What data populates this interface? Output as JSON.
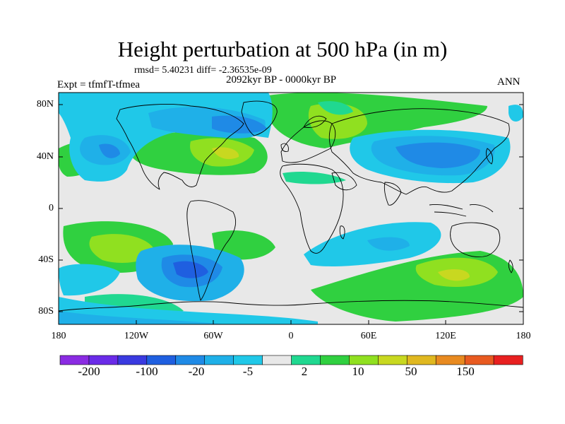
{
  "title": "Height perturbation at 500 hPa (in m)",
  "stats": "rmsd= 5.40231 diff= -2.36535e-09",
  "period": "2092kyr BP - 0000kyr BP",
  "experiment": "Expt = tfmfT-tfmea",
  "season": "ANN",
  "y_ticks": [
    "80N",
    "40N",
    "0",
    "40S",
    "80S"
  ],
  "x_ticks": [
    "180",
    "120W",
    "60W",
    "0",
    "60E",
    "120E",
    "180"
  ],
  "colorbar": {
    "colors": [
      "#8a2be2",
      "#6a2be8",
      "#3a3ae0",
      "#1f5fe0",
      "#1f8ae6",
      "#1fb0e8",
      "#20c8e8",
      "#e8e8e8",
      "#20d890",
      "#30d040",
      "#90e020",
      "#c8d820",
      "#e0b820",
      "#e88a20",
      "#e85a20",
      "#e82020"
    ],
    "labels": [
      "-200",
      "-100",
      "-20",
      "-5",
      "2",
      "10",
      "50",
      "150"
    ]
  },
  "map": {
    "projection": "cylindrical-equidistant",
    "lon_range": [
      -180,
      180
    ],
    "lat_range": [
      -90,
      90
    ],
    "background_color": "#e8e8e8",
    "coastline_color": "#000000"
  }
}
